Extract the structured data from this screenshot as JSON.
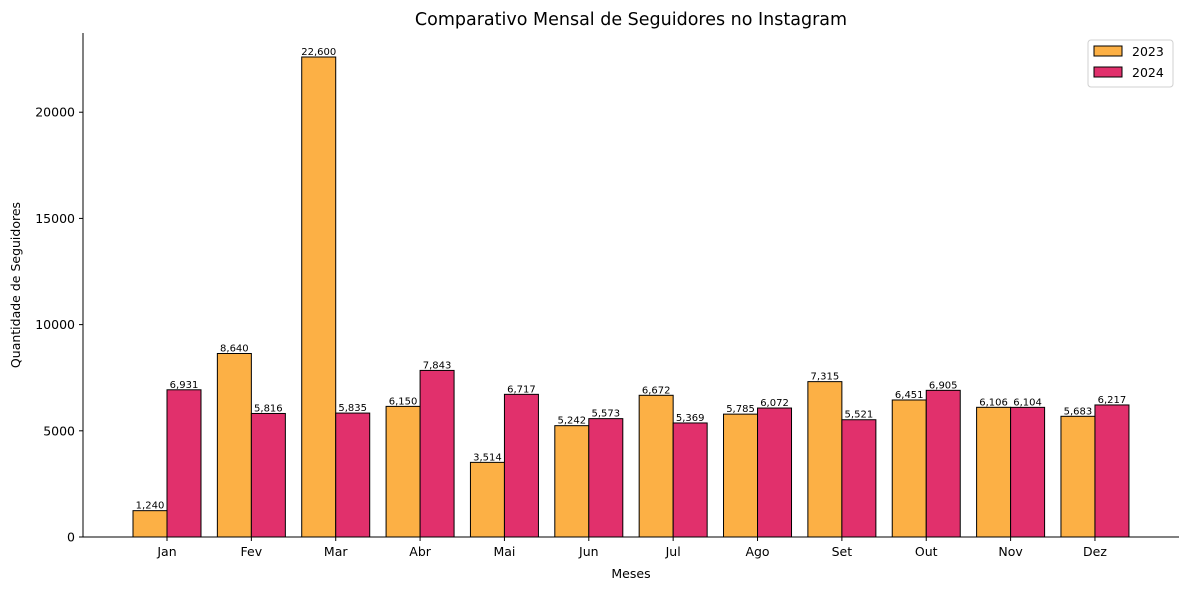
{
  "chart_data": {
    "type": "bar",
    "title": "Comparativo Mensal de Seguidores no Instagram",
    "xlabel": "Meses",
    "ylabel": "Quantidade de Seguidores",
    "categories": [
      "Jan",
      "Fev",
      "Mar",
      "Abr",
      "Mai",
      "Jun",
      "Jul",
      "Ago",
      "Set",
      "Out",
      "Nov",
      "Dez"
    ],
    "series": [
      {
        "name": "2023",
        "color": "#fcb045",
        "values": [
          1240,
          8640,
          22600,
          6150,
          3514,
          5242,
          6672,
          5785,
          7315,
          6451,
          6106,
          5683
        ],
        "labels": [
          "1,240",
          "8,640",
          "22,600",
          "6,150",
          "3,514",
          "5,242",
          "6,672",
          "5,785",
          "7,315",
          "6,451",
          "6,106",
          "5,683"
        ]
      },
      {
        "name": "2024",
        "color": "#e1306c",
        "values": [
          6931,
          5816,
          5835,
          7843,
          6717,
          5573,
          5369,
          6072,
          5521,
          6905,
          6104,
          6217
        ],
        "labels": [
          "6,931",
          "5,816",
          "5,835",
          "7,843",
          "6,717",
          "5,573",
          "5,369",
          "6,072",
          "5,521",
          "6,905",
          "6,104",
          "6,217"
        ]
      }
    ],
    "ylim": [
      0,
      23730
    ],
    "yticks": [
      0,
      5000,
      10000,
      15000,
      20000
    ],
    "ytick_labels": [
      "0",
      "5000",
      "10000",
      "15000",
      "20000"
    ],
    "grid": false,
    "legend_position": "top-right"
  }
}
